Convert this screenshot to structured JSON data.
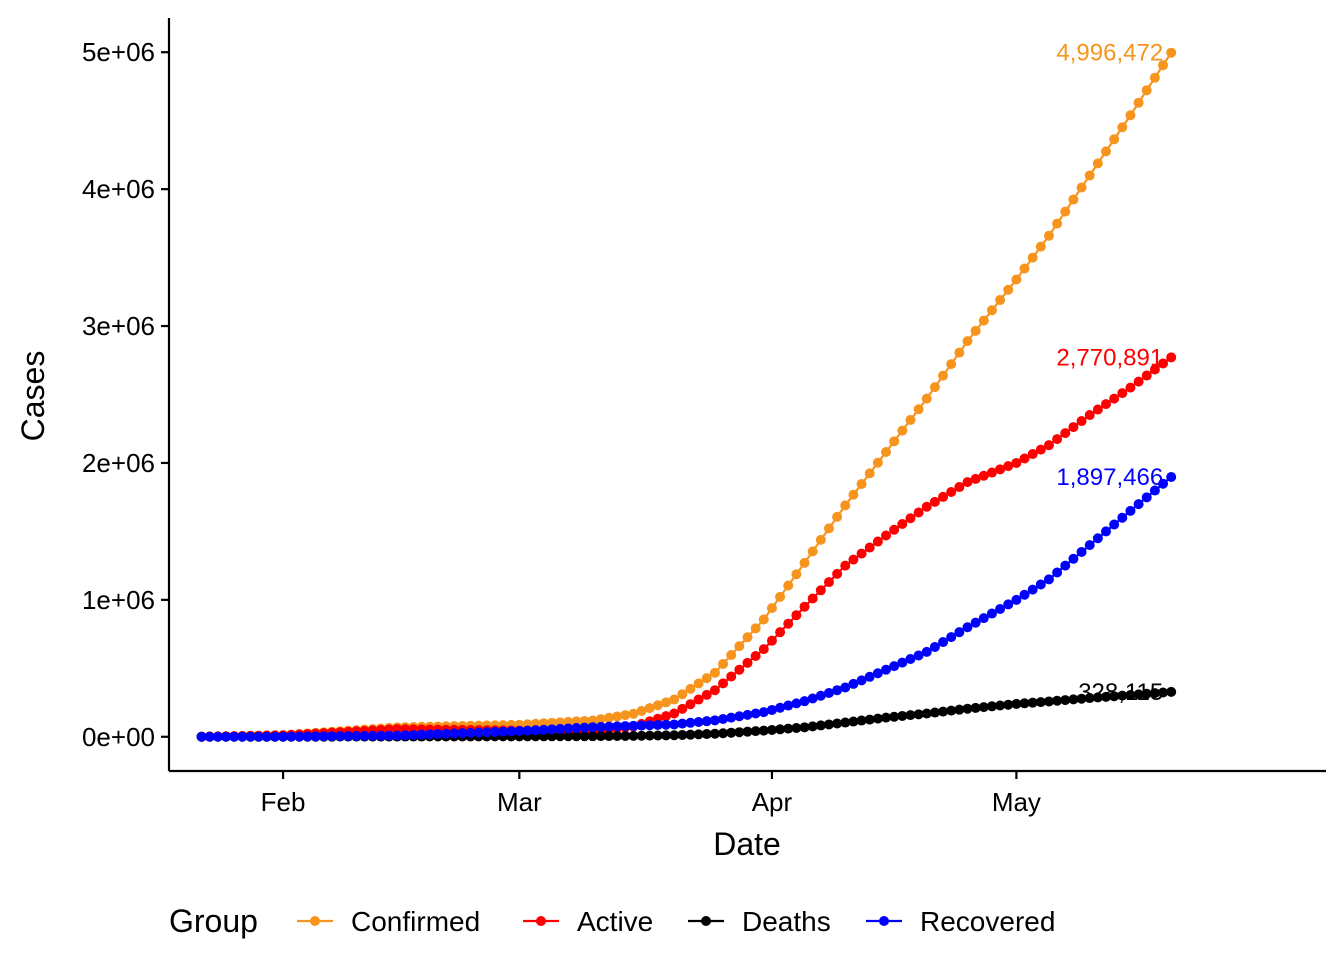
{
  "chart_data": {
    "type": "line",
    "xlabel": "Date",
    "ylabel": "Cases",
    "x_start": "2020-01-22",
    "x_end": "2020-05-20",
    "xlim": [
      "2020-01-18",
      "2020-06-08"
    ],
    "ylim": [
      -250000,
      5250000
    ],
    "x_ticks": [
      {
        "date": "2020-02-01",
        "label": "Feb"
      },
      {
        "date": "2020-03-01",
        "label": "Mar"
      },
      {
        "date": "2020-04-01",
        "label": "Apr"
      },
      {
        "date": "2020-05-01",
        "label": "May"
      }
    ],
    "y_ticks": [
      {
        "value": 0,
        "label": "0e+00"
      },
      {
        "value": 1000000,
        "label": "1e+06"
      },
      {
        "value": 2000000,
        "label": "2e+06"
      },
      {
        "value": 3000000,
        "label": "3e+06"
      },
      {
        "value": 4000000,
        "label": "4e+06"
      },
      {
        "value": 5000000,
        "label": "5e+06"
      }
    ],
    "grid": false,
    "legend_position": "bottom",
    "legend_title": "Group",
    "series": [
      {
        "name": "Confirmed",
        "color": "#F7941D",
        "end_label": "4,996,472",
        "points": [
          [
            "2020-01-22",
            555
          ],
          [
            "2020-02-01",
            12000
          ],
          [
            "2020-02-15",
            69000
          ],
          [
            "2020-03-01",
            88000
          ],
          [
            "2020-03-10",
            119000
          ],
          [
            "2020-03-15",
            168000
          ],
          [
            "2020-03-20",
            272000
          ],
          [
            "2020-03-25",
            467000
          ],
          [
            "2020-03-31",
            857000
          ],
          [
            "2020-04-05",
            1270000
          ],
          [
            "2020-04-10",
            1690000
          ],
          [
            "2020-04-15",
            2080000
          ],
          [
            "2020-04-20",
            2470000
          ],
          [
            "2020-04-25",
            2890000
          ],
          [
            "2020-05-01",
            3340000
          ],
          [
            "2020-05-05",
            3660000
          ],
          [
            "2020-05-10",
            4100000
          ],
          [
            "2020-05-15",
            4540000
          ],
          [
            "2020-05-20",
            4996472
          ]
        ]
      },
      {
        "name": "Active",
        "color": "#FF0000",
        "end_label": "2,770,891",
        "points": [
          [
            "2020-01-22",
            510
          ],
          [
            "2020-02-01",
            11000
          ],
          [
            "2020-02-15",
            56000
          ],
          [
            "2020-03-01",
            45000
          ],
          [
            "2020-03-10",
            40000
          ],
          [
            "2020-03-15",
            75000
          ],
          [
            "2020-03-20",
            170000
          ],
          [
            "2020-03-25",
            340000
          ],
          [
            "2020-03-31",
            640000
          ],
          [
            "2020-04-05",
            950000
          ],
          [
            "2020-04-10",
            1250000
          ],
          [
            "2020-04-15",
            1470000
          ],
          [
            "2020-04-20",
            1680000
          ],
          [
            "2020-04-25",
            1860000
          ],
          [
            "2020-05-01",
            2000000
          ],
          [
            "2020-05-05",
            2130000
          ],
          [
            "2020-05-10",
            2350000
          ],
          [
            "2020-05-15",
            2550000
          ],
          [
            "2020-05-20",
            2770891
          ]
        ]
      },
      {
        "name": "Deaths",
        "color": "#000000",
        "end_label": "328,115",
        "points": [
          [
            "2020-01-22",
            17
          ],
          [
            "2020-02-01",
            259
          ],
          [
            "2020-02-15",
            1500
          ],
          [
            "2020-03-01",
            3000
          ],
          [
            "2020-03-10",
            4300
          ],
          [
            "2020-03-15",
            6500
          ],
          [
            "2020-03-20",
            11000
          ],
          [
            "2020-03-25",
            22000
          ],
          [
            "2020-03-31",
            45000
          ],
          [
            "2020-04-05",
            69000
          ],
          [
            "2020-04-10",
            104000
          ],
          [
            "2020-04-15",
            140000
          ],
          [
            "2020-04-20",
            170000
          ],
          [
            "2020-04-25",
            205000
          ],
          [
            "2020-05-01",
            240000
          ],
          [
            "2020-05-05",
            258000
          ],
          [
            "2020-05-10",
            283000
          ],
          [
            "2020-05-15",
            305000
          ],
          [
            "2020-05-20",
            328115
          ]
        ]
      },
      {
        "name": "Recovered",
        "color": "#0000FF",
        "end_label": "1,897,466",
        "points": [
          [
            "2020-01-22",
            28
          ],
          [
            "2020-02-01",
            400
          ],
          [
            "2020-02-15",
            9000
          ],
          [
            "2020-03-01",
            42000
          ],
          [
            "2020-03-10",
            70000
          ],
          [
            "2020-03-15",
            80000
          ],
          [
            "2020-03-20",
            90000
          ],
          [
            "2020-03-25",
            120000
          ],
          [
            "2020-03-31",
            180000
          ],
          [
            "2020-04-05",
            260000
          ],
          [
            "2020-04-10",
            360000
          ],
          [
            "2020-04-15",
            490000
          ],
          [
            "2020-04-20",
            620000
          ],
          [
            "2020-04-25",
            800000
          ],
          [
            "2020-05-01",
            1000000
          ],
          [
            "2020-05-05",
            1150000
          ],
          [
            "2020-05-10",
            1400000
          ],
          [
            "2020-05-15",
            1650000
          ],
          [
            "2020-05-20",
            1897466
          ]
        ]
      }
    ]
  }
}
